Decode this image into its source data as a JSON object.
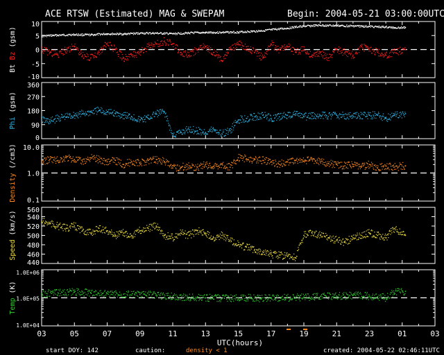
{
  "chart_data": [
    {
      "type": "scatter",
      "panel": "mag",
      "title": "ACE RTSW (Estimated) MAG & SWEPAM",
      "begin": "Begin: 2004-05-21 03:00:00UTC",
      "ylabel_parts": [
        {
          "text": "Bt",
          "color": "#ffffff"
        },
        {
          "text": "Bz",
          "color": "#ff2020"
        },
        {
          "text": "(gsm)",
          "color": "#ffffff"
        }
      ],
      "yticks": [
        "10",
        "5",
        "0",
        "-5",
        "-10"
      ],
      "ylim": [
        -10,
        10
      ],
      "xlim": [
        3,
        27
      ],
      "reference_line": 0,
      "series": [
        {
          "name": "Bt",
          "color": "#ffffff",
          "x": [
            3,
            4,
            5,
            6,
            7,
            8,
            9,
            10,
            11,
            12,
            13,
            14,
            15,
            16,
            17,
            18,
            18.5,
            19,
            20,
            21,
            22,
            23,
            23.5,
            24,
            24.5,
            25.2
          ],
          "values": [
            4.8,
            5.1,
            5.3,
            5.2,
            5.6,
            5.5,
            5.8,
            5.8,
            5.6,
            5.9,
            6.0,
            6.1,
            6.2,
            6.5,
            7.0,
            7.6,
            8.0,
            8.3,
            8.6,
            8.5,
            8.4,
            8.2,
            8.1,
            8.0,
            7.8,
            7.9
          ]
        },
        {
          "name": "Bz",
          "color": "#ff2020",
          "x": [
            3,
            3.5,
            4,
            4.5,
            5,
            5.5,
            6,
            6.5,
            7,
            7.5,
            8,
            8.5,
            9,
            9.5,
            10,
            10.5,
            11,
            11.5,
            12,
            12.5,
            13,
            13.5,
            14,
            14.5,
            15,
            15.5,
            16,
            16.5,
            17,
            17.5,
            18,
            18.5,
            19,
            19.5,
            20,
            20.5,
            21,
            21.5,
            22,
            22.5,
            23,
            23.5,
            24,
            24.5,
            25.2
          ],
          "values": [
            0,
            -1,
            -2,
            0,
            1,
            -2,
            -3,
            -1,
            2,
            0,
            -3,
            -2,
            -1,
            1,
            2,
            3,
            2,
            -1,
            -2,
            0,
            1,
            -1,
            -4,
            0,
            2,
            1,
            -1,
            -3,
            2,
            0,
            1,
            -1,
            0,
            -2,
            -1,
            -3,
            0,
            -1,
            -2,
            1,
            0,
            -1,
            -2,
            -1,
            0
          ]
        }
      ]
    },
    {
      "type": "scatter",
      "panel": "phi",
      "ylabel_parts": [
        {
          "text": "Phi",
          "color": "#30b8e8"
        },
        {
          "text": "(gsm)",
          "color": "#ffffff"
        }
      ],
      "yticks": [
        "360",
        "270",
        "180",
        "90",
        "0"
      ],
      "ylim": [
        0,
        360
      ],
      "xlim": [
        3,
        27
      ],
      "series": [
        {
          "name": "Phi",
          "color": "#30b8e8",
          "x": [
            3,
            3.5,
            4,
            4.5,
            5,
            5.5,
            6,
            6.5,
            7,
            7.5,
            8,
            8.5,
            9,
            9.5,
            10,
            10.5,
            11,
            11.5,
            12,
            12.5,
            13,
            13.5,
            14,
            14.5,
            15,
            15.5,
            16,
            16.5,
            17,
            17.5,
            18,
            18.5,
            19,
            19.5,
            20,
            21,
            22,
            23,
            23.5,
            24,
            24.5,
            25.2
          ],
          "values": [
            120,
            110,
            130,
            140,
            150,
            160,
            170,
            180,
            170,
            160,
            150,
            140,
            120,
            130,
            160,
            170,
            20,
            40,
            60,
            50,
            40,
            60,
            30,
            50,
            120,
            130,
            140,
            150,
            130,
            140,
            150,
            160,
            140,
            145,
            150,
            150,
            145,
            150,
            150,
            130,
            150,
            160
          ]
        }
      ]
    },
    {
      "type": "scatter",
      "panel": "density",
      "ylabel_parts": [
        {
          "text": "Density",
          "color": "#ff8c20"
        },
        {
          "text": "(/cm3)",
          "color": "#ffffff"
        }
      ],
      "yticks": [
        "10.0",
        "1.0",
        "0.1"
      ],
      "yscale": "log",
      "ylim": [
        0.1,
        10
      ],
      "xlim": [
        3,
        27
      ],
      "reference_line": 1,
      "series": [
        {
          "name": "Density",
          "color": "#ff8c20",
          "x": [
            3,
            3.5,
            4,
            4.5,
            5,
            5.5,
            6,
            6.5,
            7,
            7.5,
            8,
            8.5,
            9,
            9.5,
            10,
            10.5,
            11,
            11.5,
            12,
            12.5,
            13,
            13.5,
            14,
            14.5,
            15,
            15.5,
            16,
            16.5,
            17,
            17.5,
            18,
            18.5,
            19,
            19.5,
            20,
            20.5,
            21,
            21.5,
            22,
            22.5,
            23,
            23.5,
            24,
            24.5,
            25.2
          ],
          "values": [
            2.5,
            3,
            2.8,
            3.5,
            3,
            2.5,
            3.5,
            3,
            2.5,
            2.8,
            2,
            2.5,
            2.2,
            2.8,
            3,
            2.6,
            1.5,
            1.6,
            1.8,
            1.6,
            2,
            1.7,
            2,
            1.6,
            3.5,
            3.2,
            3,
            2.8,
            2.5,
            2,
            2.5,
            2.8,
            2.6,
            3,
            2.5,
            2.2,
            2,
            1.8,
            2,
            1.6,
            2,
            1.5,
            1.8,
            1.6,
            1.8
          ]
        }
      ]
    },
    {
      "type": "scatter",
      "panel": "speed",
      "ylabel_parts": [
        {
          "text": "Speed",
          "color": "#f0e040"
        },
        {
          "text": "(km/s)",
          "color": "#ffffff"
        }
      ],
      "yticks": [
        "560",
        "540",
        "520",
        "500",
        "480",
        "460",
        "440"
      ],
      "ylim": [
        440,
        560
      ],
      "xlim": [
        3,
        27
      ],
      "series": [
        {
          "name": "Speed",
          "color": "#f0e040",
          "x": [
            3,
            3.5,
            4,
            4.5,
            5,
            5.5,
            6,
            6.5,
            7,
            7.5,
            8,
            8.5,
            9,
            9.5,
            10,
            10.5,
            11,
            11.5,
            12,
            12.5,
            13,
            13.5,
            14,
            14.5,
            15,
            15.5,
            16,
            16.5,
            17,
            17.5,
            18,
            18.5,
            19,
            19.5,
            20,
            20.5,
            21,
            21.5,
            22,
            22.5,
            23,
            23.5,
            24,
            24.5,
            25.2
          ],
          "values": [
            530,
            525,
            520,
            515,
            520,
            510,
            505,
            515,
            510,
            500,
            505,
            500,
            510,
            515,
            520,
            500,
            495,
            505,
            500,
            510,
            505,
            495,
            500,
            490,
            480,
            475,
            470,
            465,
            460,
            458,
            455,
            452,
            500,
            505,
            500,
            495,
            490,
            485,
            495,
            500,
            505,
            500,
            495,
            515,
            500
          ]
        }
      ]
    },
    {
      "type": "scatter",
      "panel": "temp",
      "ylabel_parts": [
        {
          "text": "Temp",
          "color": "#30d030"
        },
        {
          "text": "(K)",
          "color": "#ffffff"
        }
      ],
      "yticks": [
        "1.0E+06",
        "1.0E+05",
        "1.0E+04"
      ],
      "yscale": "log",
      "ylim": [
        10000,
        1000000
      ],
      "xlim": [
        3,
        27
      ],
      "reference_line": 100000,
      "series": [
        {
          "name": "Temp",
          "color": "#30d030",
          "x": [
            3,
            4,
            5,
            6,
            7,
            8,
            9,
            10,
            11,
            12,
            13,
            14,
            15,
            16,
            17,
            18,
            19,
            20,
            21,
            22,
            23,
            23.5,
            24,
            24.5,
            25.2
          ],
          "values": [
            140000,
            150000,
            160000,
            150000,
            140000,
            135000,
            130000,
            125000,
            110000,
            105000,
            100000,
            95000,
            100000,
            98000,
            96000,
            100000,
            105000,
            110000,
            115000,
            120000,
            115000,
            110000,
            100000,
            150000,
            170000
          ]
        }
      ]
    }
  ],
  "x_axis": {
    "ticks": [
      "03",
      "05",
      "07",
      "09",
      "11",
      "13",
      "15",
      "17",
      "19",
      "21",
      "23",
      "01",
      "03"
    ],
    "label": "UTC(hours)"
  },
  "footer": {
    "start_doy": "start DOY: 142",
    "caution": "caution:",
    "density_note": "density < 1",
    "created": "created: 2004-05-22 02:46:11UTC"
  },
  "colors": {
    "background": "#000000",
    "axes": "#ffffff",
    "caution_marker": "#ff8c20"
  }
}
